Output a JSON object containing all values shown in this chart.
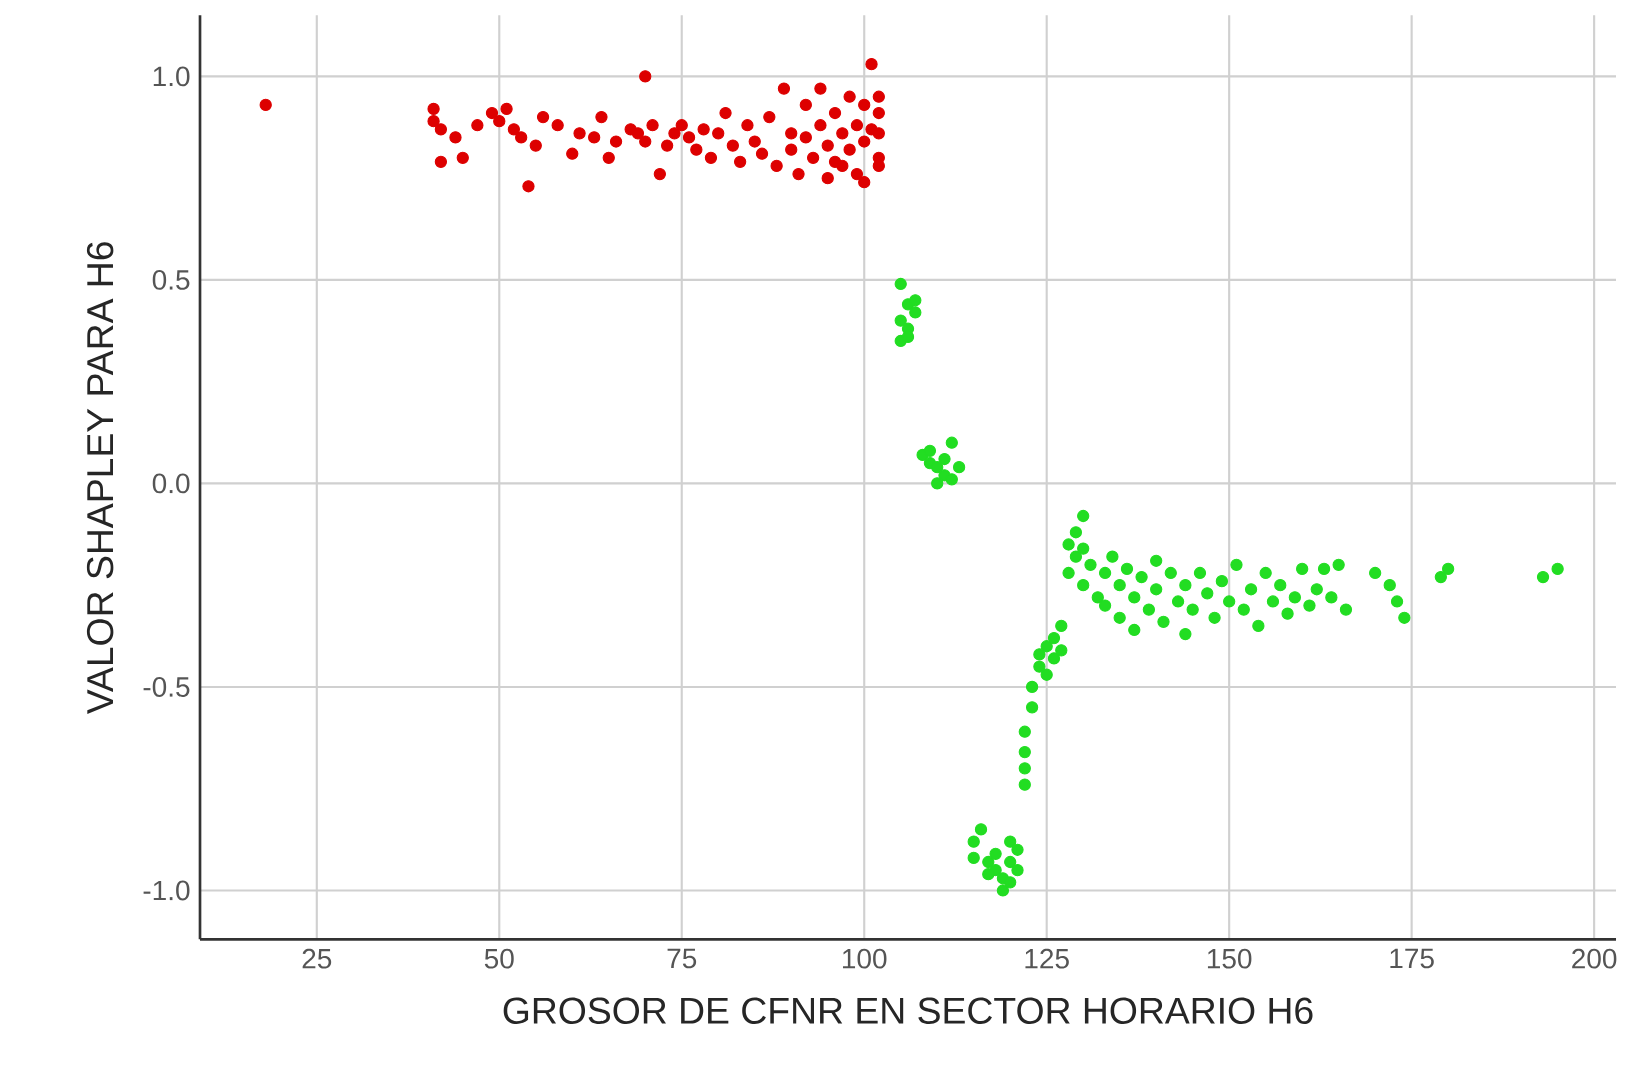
{
  "chart_data": {
    "type": "scatter",
    "xlabel": "GROSOR DE CFNR EN SECTOR HORARIO H6",
    "ylabel": "VALOR SHAPLEY PARA H6",
    "xlim": [
      9,
      203
    ],
    "ylim": [
      -1.12,
      1.15
    ],
    "xticks": [
      25,
      50,
      75,
      100,
      125,
      150,
      175,
      200
    ],
    "yticks": [
      {
        "value": -1.0,
        "label": "-1.0"
      },
      {
        "value": -0.5,
        "label": "-0.5"
      },
      {
        "value": 0.0,
        "label": "0.0"
      },
      {
        "value": 0.5,
        "label": "0.5"
      },
      {
        "value": 1.0,
        "label": "1.0"
      }
    ],
    "grid": true,
    "marker": "circle",
    "series": [
      {
        "color": "#dd0000",
        "x": [
          18,
          41,
          41,
          42,
          42,
          44,
          45,
          47,
          49,
          50,
          51,
          52,
          53,
          54,
          55,
          56,
          58,
          60,
          61,
          63,
          64,
          65,
          66,
          68,
          69,
          70,
          70,
          71,
          72,
          73,
          74,
          75,
          76,
          77,
          78,
          79,
          80,
          81,
          82,
          83,
          84,
          85,
          86,
          87,
          88,
          89,
          90,
          90,
          91,
          92,
          92,
          93,
          94,
          94,
          95,
          95,
          96,
          96,
          97,
          97,
          98,
          98,
          99,
          99,
          100,
          100,
          100,
          101,
          101,
          102,
          102,
          102,
          102,
          102
        ],
        "values": [
          0.93,
          0.92,
          0.89,
          0.87,
          0.79,
          0.85,
          0.8,
          0.88,
          0.91,
          0.89,
          0.92,
          0.87,
          0.85,
          0.73,
          0.83,
          0.9,
          0.88,
          0.81,
          0.86,
          0.85,
          0.9,
          0.8,
          0.84,
          0.87,
          0.86,
          1.0,
          0.84,
          0.88,
          0.76,
          0.83,
          0.86,
          0.88,
          0.85,
          0.82,
          0.87,
          0.8,
          0.86,
          0.91,
          0.83,
          0.79,
          0.88,
          0.84,
          0.81,
          0.9,
          0.78,
          0.97,
          0.86,
          0.82,
          0.76,
          0.93,
          0.85,
          0.8,
          0.97,
          0.88,
          0.83,
          0.75,
          0.91,
          0.79,
          0.86,
          0.78,
          0.95,
          0.82,
          0.88,
          0.76,
          0.93,
          0.84,
          0.74,
          1.03,
          0.87,
          0.91,
          0.8,
          0.78,
          0.86,
          0.95
        ]
      },
      {
        "color": "#22dd22",
        "x": [
          105,
          106,
          105,
          106,
          107,
          107,
          105,
          106,
          108,
          109,
          110,
          111,
          112,
          111,
          112,
          113,
          110,
          109,
          115,
          115,
          116,
          117,
          118,
          119,
          119,
          120,
          120,
          121,
          121,
          118,
          117,
          120,
          122,
          122,
          122,
          122,
          123,
          123,
          124,
          124,
          125,
          125,
          126,
          126,
          127,
          127,
          128,
          128,
          129,
          129,
          130,
          130,
          130,
          131,
          132,
          133,
          133,
          134,
          135,
          135,
          136,
          137,
          137,
          138,
          139,
          140,
          140,
          141,
          142,
          143,
          144,
          144,
          145,
          146,
          147,
          148,
          149,
          150,
          151,
          152,
          153,
          154,
          155,
          156,
          157,
          158,
          159,
          160,
          161,
          162,
          163,
          164,
          165,
          166,
          170,
          172,
          173,
          174,
          179,
          180,
          193,
          195
        ],
        "values": [
          0.49,
          0.44,
          0.4,
          0.38,
          0.42,
          0.45,
          0.35,
          0.36,
          0.07,
          0.05,
          0.04,
          0.06,
          0.1,
          0.02,
          0.01,
          0.04,
          0.0,
          0.08,
          -0.88,
          -0.92,
          -0.85,
          -0.93,
          -0.95,
          -0.97,
          -1.0,
          -0.93,
          -0.98,
          -0.95,
          -0.9,
          -0.91,
          -0.96,
          -0.88,
          -0.74,
          -0.7,
          -0.66,
          -0.61,
          -0.55,
          -0.5,
          -0.45,
          -0.42,
          -0.4,
          -0.47,
          -0.38,
          -0.43,
          -0.35,
          -0.41,
          -0.15,
          -0.22,
          -0.12,
          -0.18,
          -0.08,
          -0.16,
          -0.25,
          -0.2,
          -0.28,
          -0.22,
          -0.3,
          -0.18,
          -0.25,
          -0.33,
          -0.21,
          -0.28,
          -0.36,
          -0.23,
          -0.31,
          -0.26,
          -0.19,
          -0.34,
          -0.22,
          -0.29,
          -0.25,
          -0.37,
          -0.31,
          -0.22,
          -0.27,
          -0.33,
          -0.24,
          -0.29,
          -0.2,
          -0.31,
          -0.26,
          -0.35,
          -0.22,
          -0.29,
          -0.25,
          -0.32,
          -0.28,
          -0.21,
          -0.3,
          -0.26,
          -0.21,
          -0.28,
          -0.2,
          -0.31,
          -0.22,
          -0.25,
          -0.29,
          -0.33,
          -0.23,
          -0.21,
          -0.23,
          -0.21
        ]
      }
    ]
  }
}
